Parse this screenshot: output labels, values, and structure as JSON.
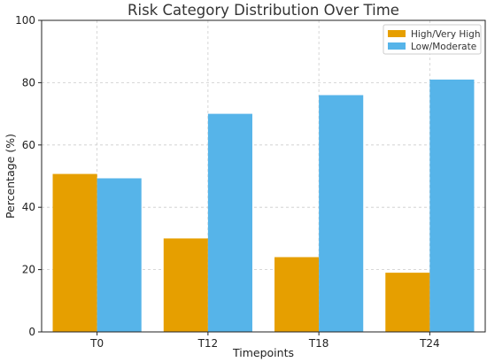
{
  "chart_data": {
    "type": "bar",
    "title": "Risk Category Distribution Over Time",
    "xlabel": "Timepoints",
    "ylabel": "Percentage (%)",
    "categories": [
      "T0",
      "T12",
      "T18",
      "T24"
    ],
    "series": [
      {
        "name": "High/Very High",
        "values": [
          50.7,
          30,
          24,
          19
        ],
        "color": "#E69F00"
      },
      {
        "name": "Low/Moderate",
        "values": [
          49.3,
          70,
          76,
          81
        ],
        "color": "#56B4E9"
      }
    ],
    "ylim": [
      0,
      100
    ],
    "yticks": [
      0,
      20,
      40,
      60,
      80,
      100
    ],
    "grid": true,
    "legend_position": "top-right"
  }
}
